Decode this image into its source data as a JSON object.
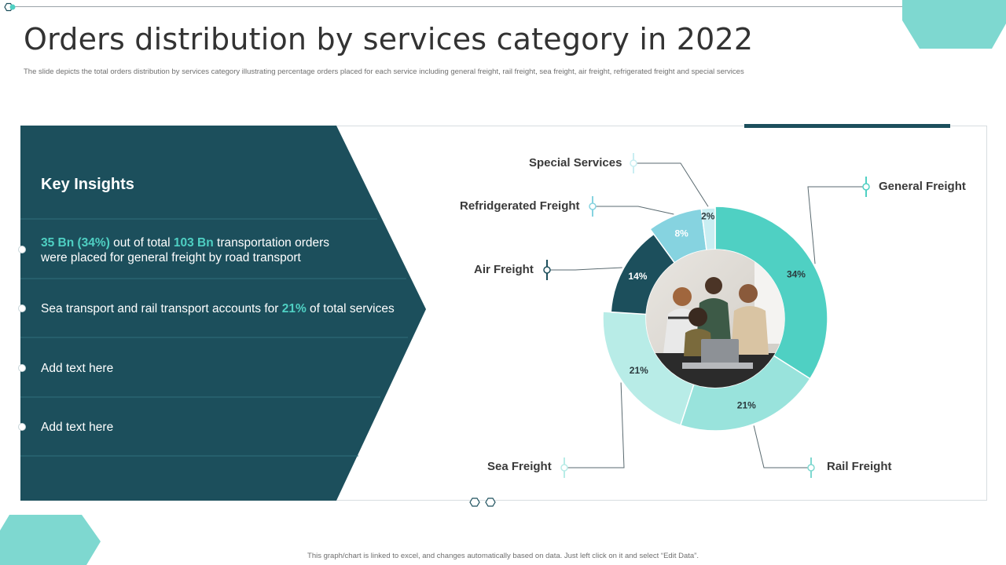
{
  "header": {
    "title": "Orders distribution by services category in 2022",
    "subtitle": "The slide depicts the total orders distribution by services category illustrating percentage orders placed for each service including general freight, rail freight, sea freight, air freight, refrigerated freight and special services"
  },
  "insights": {
    "title": "Key Insights",
    "items": [
      {
        "hl1": "35 Bn (34%)",
        "t1": " out of total ",
        "hl2": "103 Bn",
        "t2": " transportation orders",
        "t3": "were placed for general freight by road transport"
      },
      {
        "t1": "Sea transport and rail transport accounts for ",
        "hl1": "21%",
        "t2": " of total services"
      },
      {
        "t1": "Add text here"
      },
      {
        "t1": "Add text here"
      }
    ]
  },
  "chart_data": {
    "type": "pie",
    "title": "",
    "labels": [
      "General Freight",
      "Rail Freight",
      "Sea Freight",
      "Air Freight",
      "Refridgerated Freight",
      "Special Services"
    ],
    "values": [
      34,
      21,
      21,
      14,
      8,
      2
    ],
    "value_labels": [
      "34%",
      "21%",
      "21%",
      "14%",
      "8%",
      "2%"
    ],
    "colors": [
      "#4fd0c3",
      "#99e3dc",
      "#b8ece7",
      "#1c4f5c",
      "#86d3e0",
      "#c9eef2"
    ]
  },
  "colors": {
    "panel": "#1c4f5c",
    "accent": "#4fd0c3",
    "hexagon": "#7ed8d0"
  },
  "center_image": "photo of people looking at a laptop",
  "footer": {
    "note": "This graph/chart is linked to excel, and changes automatically based on data. Just left click on it and select “Edit Data”."
  }
}
